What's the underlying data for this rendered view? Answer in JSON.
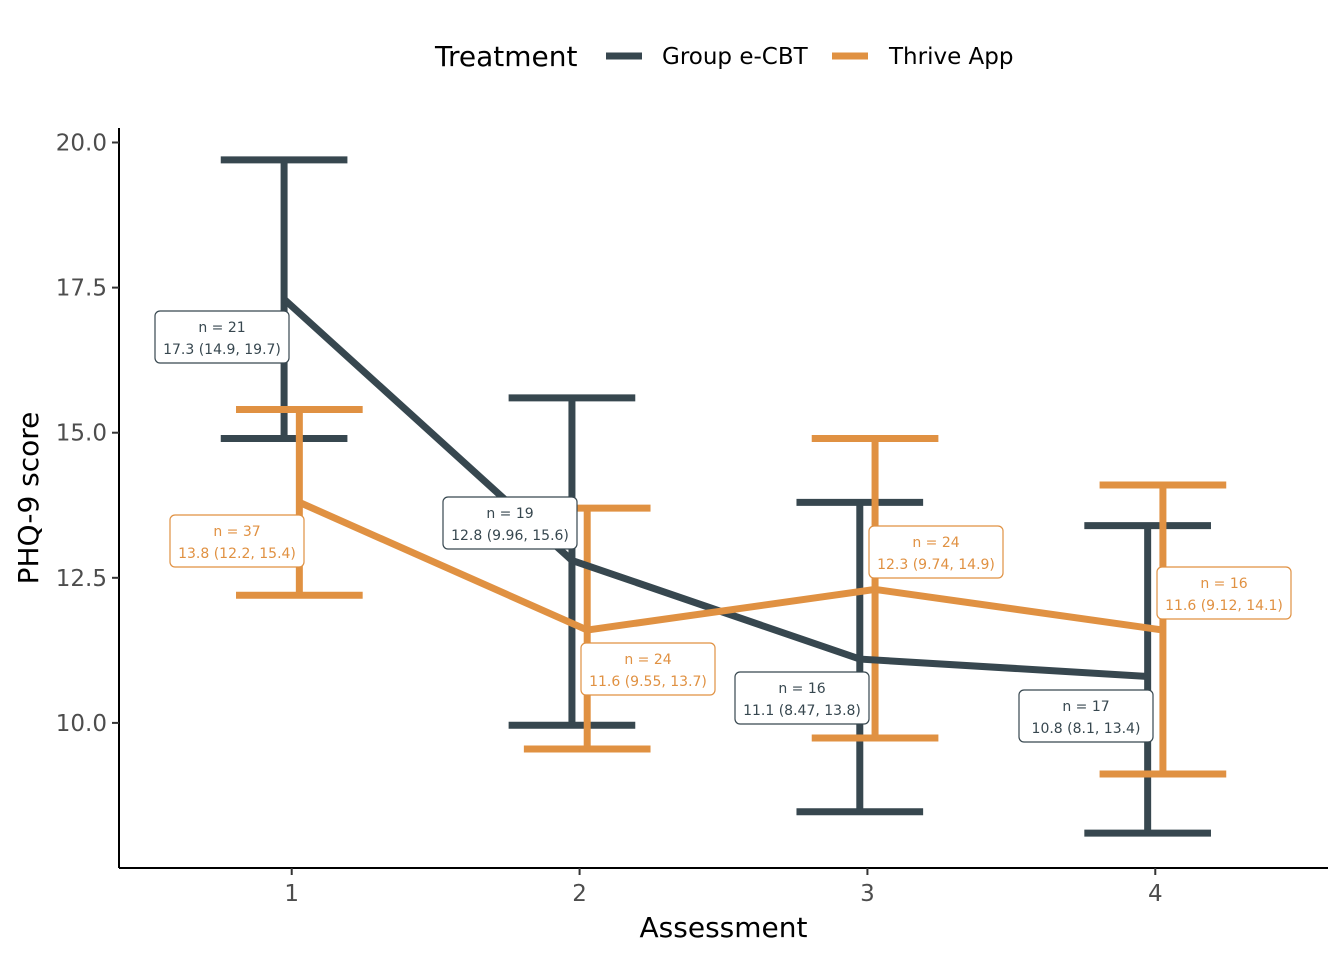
{
  "chart_data": {
    "type": "line",
    "xlabel": "Assessment",
    "ylabel": "PHQ-9 score",
    "x": [
      1,
      2,
      3,
      4
    ],
    "x_tick_labels": [
      "1",
      "2",
      "3",
      "4"
    ],
    "xlim": [
      0.4,
      4.6
    ],
    "ylim": [
      7.5,
      20.25
    ],
    "y_ticks": [
      10.0,
      12.5,
      15.0,
      17.5,
      20.0
    ],
    "y_tick_labels": [
      "10.0",
      "12.5",
      "15.0",
      "17.5",
      "20.0"
    ],
    "grid": false,
    "legend": {
      "title": "Treatment",
      "position": "top"
    },
    "series": [
      {
        "name": "Group e-CBT",
        "color": "#37474f",
        "values": [
          17.3,
          12.8,
          11.1,
          10.8
        ],
        "ci_low": [
          14.9,
          9.96,
          8.47,
          8.1
        ],
        "ci_high": [
          19.7,
          15.6,
          13.8,
          13.4
        ],
        "n_labels": [
          "n = 21",
          "n = 19",
          "n = 16",
          "n = 17"
        ],
        "value_labels": [
          "17.3 (14.9, 19.7)",
          "12.8 (9.96, 15.6)",
          "11.1 (8.47, 13.8)",
          "10.8 (8.1, 13.4)"
        ]
      },
      {
        "name": "Thrive App",
        "color": "#e09142",
        "values": [
          13.8,
          11.6,
          12.3,
          11.6
        ],
        "ci_low": [
          12.2,
          9.55,
          9.74,
          9.12
        ],
        "ci_high": [
          15.4,
          13.7,
          14.9,
          14.1
        ],
        "n_labels": [
          "n = 37",
          "n = 24",
          "n = 24",
          "n = 16"
        ],
        "value_labels": [
          "13.8 (12.2, 15.4)",
          "11.6 (9.55, 13.7)",
          "12.3 (9.74, 14.9)",
          "11.6 (9.12, 14.1)"
        ]
      }
    ]
  }
}
